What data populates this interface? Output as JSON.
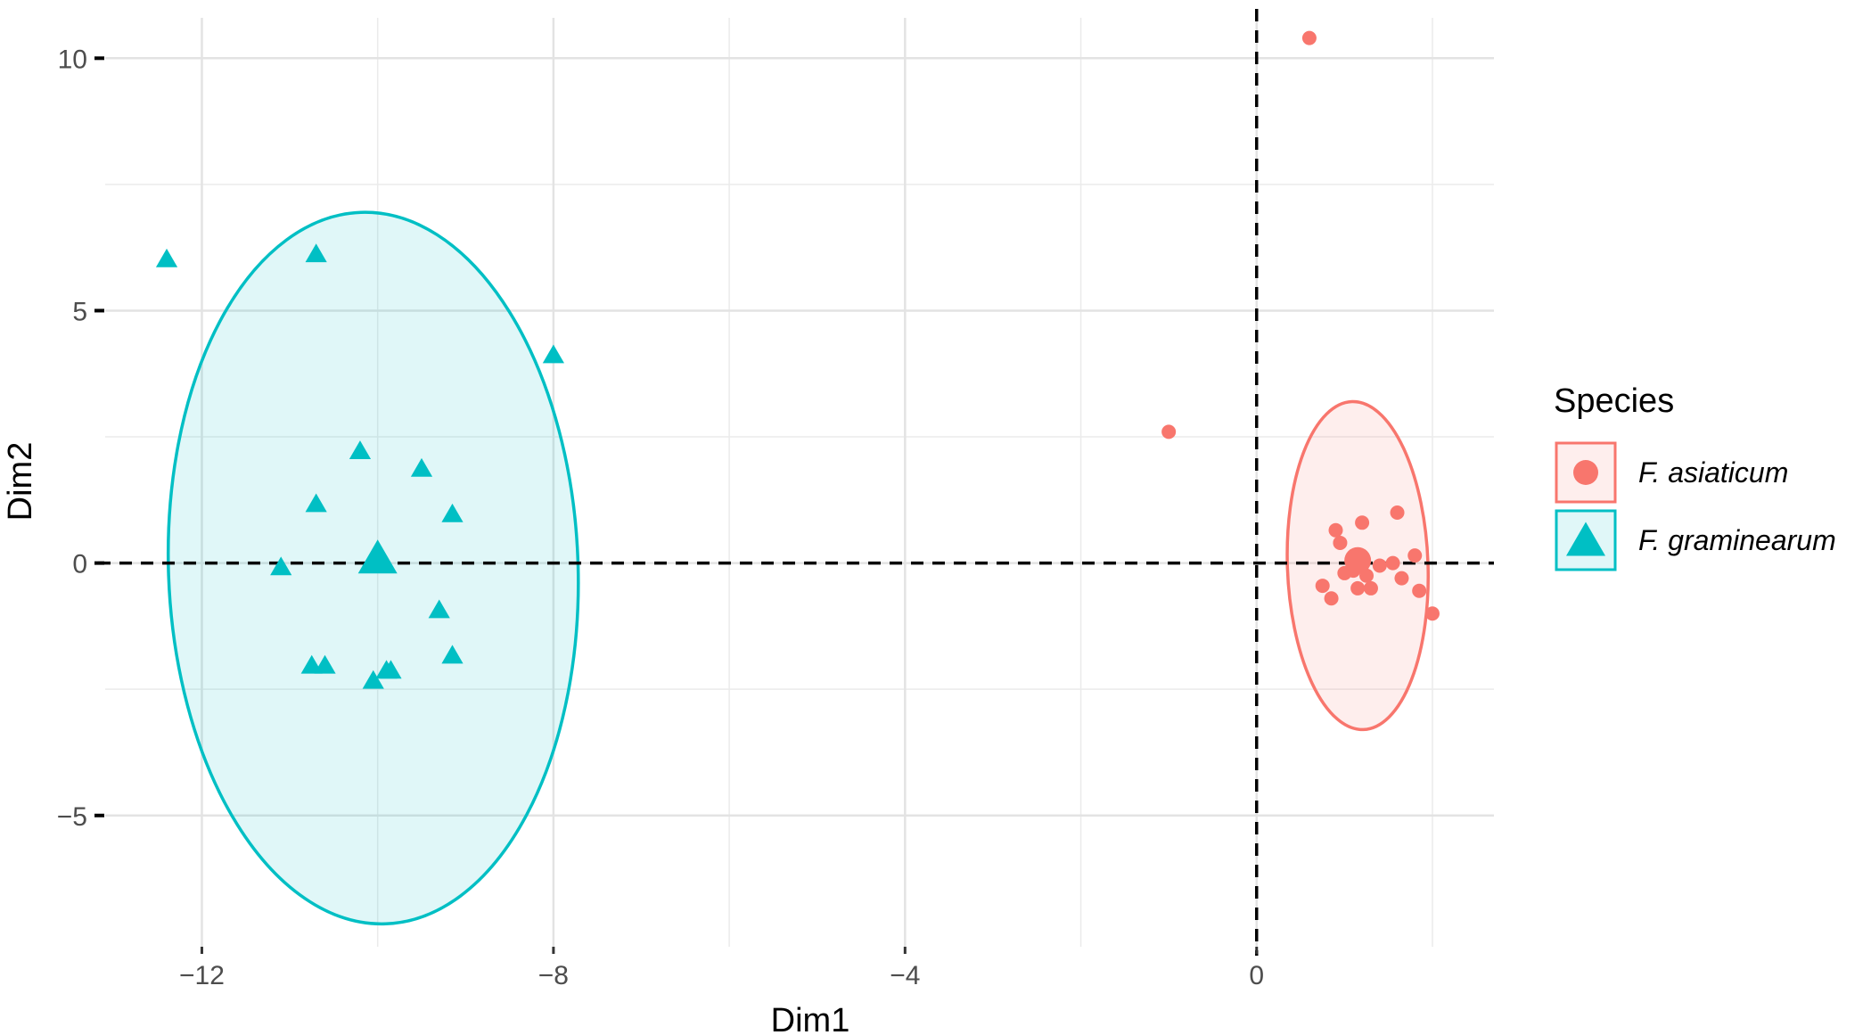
{
  "chart_data": {
    "type": "scatter",
    "xlabel": "Dim1",
    "ylabel": "Dim2",
    "xlim": [
      -13.1,
      2.7
    ],
    "ylim": [
      -7.6,
      10.8
    ],
    "x_ticks": [
      -12,
      -8,
      -4,
      0
    ],
    "x_tick_labels": [
      "−12",
      "−8",
      "−4",
      "0"
    ],
    "y_ticks": [
      -5,
      0,
      5,
      10
    ],
    "y_tick_labels": [
      "−5",
      "0",
      "5",
      "10"
    ],
    "x_minor_gridlines": [
      -10,
      -6,
      -2,
      2
    ],
    "y_minor_gridlines": [
      -2.5,
      2.5,
      7.5
    ],
    "grid": true,
    "reference_lines": {
      "x": 0,
      "y": 0,
      "style": "dashed"
    },
    "legend": {
      "title": "Species",
      "position": "right",
      "entries": [
        {
          "label": "F. asiaticum",
          "color": "#F8766D",
          "shape": "circle"
        },
        {
          "label": "F. graminearum",
          "color": "#00BFC4",
          "shape": "triangle"
        }
      ]
    },
    "series": [
      {
        "name": "F. asiaticum",
        "color": "#F8766D",
        "shape": "circle",
        "points": [
          {
            "x": 0.6,
            "y": 10.4
          },
          {
            "x": -1.0,
            "y": 2.6
          },
          {
            "x": 1.6,
            "y": 1.0
          },
          {
            "x": 1.2,
            "y": 0.8
          },
          {
            "x": 0.9,
            "y": 0.65
          },
          {
            "x": 0.95,
            "y": 0.4
          },
          {
            "x": 1.8,
            "y": 0.15
          },
          {
            "x": 1.4,
            "y": -0.05
          },
          {
            "x": 1.55,
            "y": 0.0
          },
          {
            "x": 1.0,
            "y": -0.2
          },
          {
            "x": 1.1,
            "y": -0.15
          },
          {
            "x": 1.25,
            "y": -0.25
          },
          {
            "x": 1.65,
            "y": -0.3
          },
          {
            "x": 0.75,
            "y": -0.45
          },
          {
            "x": 1.15,
            "y": -0.5
          },
          {
            "x": 1.3,
            "y": -0.5
          },
          {
            "x": 1.85,
            "y": -0.55
          },
          {
            "x": 0.85,
            "y": -0.7
          },
          {
            "x": 2.0,
            "y": -1.0
          }
        ],
        "centroid": {
          "x": 1.15,
          "y": 0.05
        },
        "ellipse": {
          "cx": 1.15,
          "cy": -0.05,
          "rx": 0.8,
          "ry": 3.25,
          "angle": -2
        }
      },
      {
        "name": "F. graminearum",
        "color": "#00BFC4",
        "shape": "triangle",
        "points": [
          {
            "x": -12.4,
            "y": 6.0
          },
          {
            "x": -10.7,
            "y": 6.1
          },
          {
            "x": -8.0,
            "y": 4.1
          },
          {
            "x": -10.2,
            "y": 2.2
          },
          {
            "x": -9.5,
            "y": 1.85
          },
          {
            "x": -10.7,
            "y": 1.15
          },
          {
            "x": -9.15,
            "y": 0.95
          },
          {
            "x": -11.1,
            "y": -0.1
          },
          {
            "x": -9.3,
            "y": -0.95
          },
          {
            "x": -9.15,
            "y": -1.85
          },
          {
            "x": -10.75,
            "y": -2.05
          },
          {
            "x": -10.6,
            "y": -2.05
          },
          {
            "x": -9.9,
            "y": -2.15
          },
          {
            "x": -9.85,
            "y": -2.15
          },
          {
            "x": -10.05,
            "y": -2.35
          }
        ],
        "centroid": {
          "x": -10.0,
          "y": 0.05
        },
        "ellipse": {
          "cx": -10.05,
          "cy": -0.1,
          "rx": 2.33,
          "ry": 7.05,
          "angle": -2
        }
      }
    ]
  }
}
